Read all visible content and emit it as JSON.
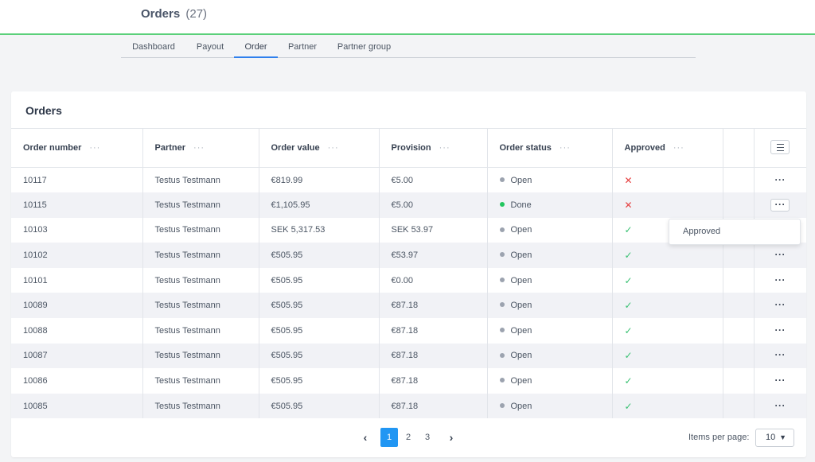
{
  "header": {
    "title": "Orders",
    "count": "(27)"
  },
  "tabs": [
    {
      "label": "Dashboard"
    },
    {
      "label": "Payout"
    },
    {
      "label": "Order"
    },
    {
      "label": "Partner"
    },
    {
      "label": "Partner group"
    }
  ],
  "active_tab": "Order",
  "card": {
    "title": "Orders"
  },
  "table": {
    "columns": [
      "Order number",
      "Partner",
      "Order value",
      "Provision",
      "Order status",
      "Approved"
    ],
    "column_menu_glyph": "···",
    "rows": [
      {
        "order_number": "10117",
        "partner": "Testus Testmann",
        "order_value": "€819.99",
        "provision": "€5.00",
        "status": "Open",
        "approved": "✕"
      },
      {
        "order_number": "10115",
        "partner": "Testus Testmann",
        "order_value": "€1,105.95",
        "provision": "€5.00",
        "status": "Done",
        "approved": "✕"
      },
      {
        "order_number": "10103",
        "partner": "Testus Testmann",
        "order_value": "SEK 5,317.53",
        "provision": "SEK 53.97",
        "status": "Open",
        "approved": "✓"
      },
      {
        "order_number": "10102",
        "partner": "Testus Testmann",
        "order_value": "€505.95",
        "provision": "€53.97",
        "status": "Open",
        "approved": "✓"
      },
      {
        "order_number": "10101",
        "partner": "Testus Testmann",
        "order_value": "€505.95",
        "provision": "€0.00",
        "status": "Open",
        "approved": "✓"
      },
      {
        "order_number": "10089",
        "partner": "Testus Testmann",
        "order_value": "€505.95",
        "provision": "€87.18",
        "status": "Open",
        "approved": "✓"
      },
      {
        "order_number": "10088",
        "partner": "Testus Testmann",
        "order_value": "€505.95",
        "provision": "€87.18",
        "status": "Open",
        "approved": "✓"
      },
      {
        "order_number": "10087",
        "partner": "Testus Testmann",
        "order_value": "€505.95",
        "provision": "€87.18",
        "status": "Open",
        "approved": "✓"
      },
      {
        "order_number": "10086",
        "partner": "Testus Testmann",
        "order_value": "€505.95",
        "provision": "€87.18",
        "status": "Open",
        "approved": "✓"
      },
      {
        "order_number": "10085",
        "partner": "Testus Testmann",
        "order_value": "€505.95",
        "provision": "€87.18",
        "status": "Open",
        "approved": "✓"
      }
    ],
    "row_menu_glyph": "···"
  },
  "row_dropdown": {
    "item": "Approved"
  },
  "pagination": {
    "prev_glyph": "‹",
    "next_glyph": "›",
    "pages": [
      "1",
      "2",
      "3"
    ],
    "current": "1",
    "items_per_page_label": "Items per page:",
    "items_per_page": "10"
  },
  "colors": {
    "accent": "#2196f3",
    "header_line": "#5bd07a",
    "status_open": "#9ca3af",
    "status_done": "#22c55e",
    "approved_yes": "#38c172",
    "approved_no": "#e53e3e"
  }
}
